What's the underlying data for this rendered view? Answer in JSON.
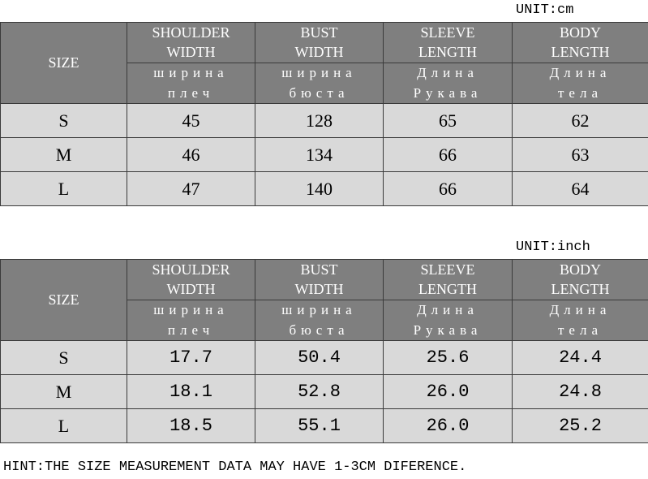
{
  "tables": [
    {
      "unit": "UNIT:cm",
      "size_header": "SIZE",
      "columns": [
        {
          "en": [
            "SHOULDER",
            "WIDTH"
          ],
          "ru": [
            "ширина",
            "плеч"
          ]
        },
        {
          "en": [
            "BUST",
            "WIDTH"
          ],
          "ru": [
            "ширина",
            "бюста"
          ]
        },
        {
          "en": [
            "SLEEVE",
            "LENGTH"
          ],
          "ru": [
            "Длина",
            "Рукава"
          ]
        },
        {
          "en": [
            "BODY",
            "LENGTH"
          ],
          "ru": [
            "Длина",
            "тела"
          ]
        }
      ],
      "rows": [
        {
          "size": "S",
          "values": [
            "45",
            "128",
            "65",
            "62"
          ]
        },
        {
          "size": "M",
          "values": [
            "46",
            "134",
            "66",
            "63"
          ]
        },
        {
          "size": "L",
          "values": [
            "47",
            "140",
            "66",
            "64"
          ]
        }
      ]
    },
    {
      "unit": "UNIT:inch",
      "size_header": "SIZE",
      "columns": [
        {
          "en": [
            "SHOULDER",
            "WIDTH"
          ],
          "ru": [
            "ширина",
            "плеч"
          ]
        },
        {
          "en": [
            "BUST",
            "WIDTH"
          ],
          "ru": [
            "ширина",
            "бюста"
          ]
        },
        {
          "en": [
            "SLEEVE",
            "LENGTH"
          ],
          "ru": [
            "Длина",
            "Рукава"
          ]
        },
        {
          "en": [
            "BODY",
            "LENGTH"
          ],
          "ru": [
            "Длина",
            "тела"
          ]
        }
      ],
      "rows": [
        {
          "size": "S",
          "values": [
            "17.7",
            "50.4",
            "25.6",
            "24.4"
          ]
        },
        {
          "size": "M",
          "values": [
            "18.1",
            "52.8",
            "26.0",
            "24.8"
          ]
        },
        {
          "size": "L",
          "values": [
            "18.5",
            "55.1",
            "26.0",
            "25.2"
          ]
        }
      ]
    }
  ],
  "hint": "HINT:THE SIZE MEASUREMENT DATA MAY HAVE 1-3CM DIFERENCE."
}
